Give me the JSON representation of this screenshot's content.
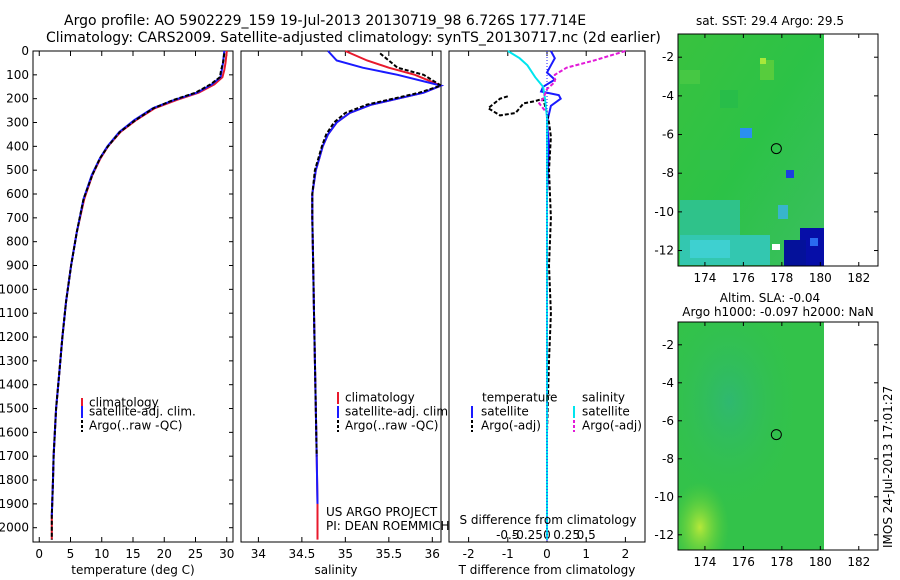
{
  "title_line1": "Argo profile: AO 5902229_159 19-Jul-2013 20130719_98 6.726S 177.714E",
  "title_line2": "Climatology: CARS2009. Satellite-adjusted climatology: synTS_20130717.nc (2d earlier)",
  "colors": {
    "clim": "#e8192c",
    "sat": "#1a1aff",
    "argo": "#000000",
    "sal_sat": "#00e5ee",
    "sal_argo": "#e21ad8"
  },
  "depth_ticks": [
    0,
    100,
    200,
    300,
    400,
    500,
    600,
    700,
    800,
    900,
    1000,
    1100,
    1200,
    1300,
    1400,
    1500,
    1600,
    1700,
    1800,
    1900,
    2000
  ],
  "chart_data": [
    {
      "type": "line",
      "id": "temperature",
      "xlabel": "temperature (deg C)",
      "xlim": [
        -1,
        31
      ],
      "ylim": [
        2060,
        0
      ],
      "xticks": [
        0,
        5,
        10,
        15,
        20,
        25,
        30
      ],
      "legend": [
        "climatology",
        "satellite-adj. clim.",
        "Argo(..raw -QC)"
      ],
      "series": [
        {
          "name": "climatology",
          "color_key": "clim",
          "x": [
            30.0,
            29.8,
            29.6,
            29.3,
            28.0,
            25.5,
            22.0,
            18.5,
            15.5,
            13.0,
            11.0,
            9.8,
            8.5,
            7.2,
            6.0,
            5.1,
            4.3,
            3.7,
            3.2,
            2.7,
            2.3,
            2.2,
            2.0,
            2.0
          ],
          "y": [
            0,
            50,
            80,
            110,
            140,
            175,
            205,
            240,
            290,
            340,
            400,
            450,
            520,
            620,
            760,
            900,
            1050,
            1200,
            1350,
            1500,
            1700,
            1800,
            1950,
            2050
          ]
        },
        {
          "name": "satellite-adj. clim.",
          "color_key": "sat",
          "x": [
            29.6,
            29.4,
            29.2,
            29.0,
            27.6,
            25.2,
            21.6,
            18.2,
            15.2,
            12.8,
            10.9,
            9.7,
            8.4,
            7.1,
            6.0,
            5.1,
            4.3,
            3.7,
            3.2,
            2.7,
            2.3,
            2.2,
            2.0
          ],
          "y": [
            0,
            50,
            80,
            110,
            140,
            175,
            205,
            240,
            290,
            340,
            400,
            450,
            520,
            620,
            760,
            900,
            1050,
            1200,
            1350,
            1500,
            1700,
            1800,
            1950
          ]
        },
        {
          "name": "Argo(..raw -QC)",
          "color_key": "argo",
          "x": [
            29.6,
            29.4,
            29.1,
            28.9,
            27.4,
            25.0,
            21.5,
            18.3,
            15.4,
            12.9,
            11.0,
            9.7,
            8.5,
            7.1,
            6.0,
            5.1,
            4.3,
            3.7,
            3.2,
            2.7,
            2.3,
            2.2,
            2.0,
            2.0
          ],
          "y": [
            10,
            50,
            80,
            110,
            140,
            175,
            205,
            240,
            290,
            340,
            400,
            450,
            520,
            620,
            760,
            900,
            1050,
            1200,
            1350,
            1500,
            1700,
            1800,
            1950,
            2050
          ]
        }
      ]
    },
    {
      "type": "line",
      "id": "salinity",
      "xlabel": "salinity",
      "xlim": [
        33.8,
        36.1
      ],
      "ylim": [
        2060,
        0
      ],
      "xticks": [
        34,
        34.5,
        35,
        35.5,
        36
      ],
      "legend": [
        "climatology",
        "satellite-adj. clim.",
        "Argo(..raw -QC)"
      ],
      "annotation": [
        "US ARGO PROJECT",
        "PI: DEAN ROEMMICH"
      ],
      "series": [
        {
          "name": "climatology",
          "color_key": "clim",
          "x": [
            35.0,
            35.25,
            35.5,
            35.8,
            36.1,
            35.9,
            35.6,
            35.3,
            35.05,
            34.9,
            34.8,
            34.74,
            34.7,
            34.66,
            34.62,
            34.62,
            34.63,
            34.64,
            34.65,
            34.66,
            34.67,
            34.68,
            34.68
          ],
          "y": [
            0,
            40,
            70,
            100,
            145,
            175,
            200,
            225,
            260,
            300,
            350,
            400,
            450,
            500,
            600,
            700,
            900,
            1100,
            1300,
            1500,
            1700,
            1900,
            2050
          ]
        },
        {
          "name": "satellite-adj. clim.",
          "color_key": "sat",
          "x": [
            34.8,
            34.9,
            35.2,
            35.6,
            36.1,
            35.9,
            35.6,
            35.3,
            35.05,
            34.9,
            34.8,
            34.74,
            34.7,
            34.66,
            34.62,
            34.62,
            34.63,
            34.64,
            34.65,
            34.66,
            34.67,
            34.68
          ],
          "y": [
            0,
            40,
            70,
            100,
            145,
            175,
            200,
            225,
            260,
            300,
            350,
            400,
            450,
            500,
            600,
            700,
            900,
            1100,
            1300,
            1500,
            1700,
            1900
          ]
        },
        {
          "name": "Argo(..raw -QC)",
          "color_key": "argo",
          "x": [
            35.4,
            35.5,
            35.6,
            35.9,
            36.1,
            35.85,
            35.55,
            35.25,
            35.0,
            34.87,
            34.78,
            34.73,
            34.69,
            34.65,
            34.62,
            34.62,
            34.63,
            34.64,
            34.65,
            34.66,
            34.67
          ],
          "y": [
            10,
            40,
            70,
            100,
            145,
            175,
            200,
            225,
            260,
            300,
            350,
            400,
            450,
            500,
            600,
            700,
            900,
            1100,
            1300,
            1500,
            1700
          ]
        }
      ]
    },
    {
      "type": "line",
      "id": "differences",
      "xlabel": "T difference from climatology",
      "xlabel_top": "S difference from climatology",
      "xlim": [
        -2.5,
        2.5
      ],
      "ylim": [
        2060,
        0
      ],
      "xticks": [
        -2,
        -1,
        0,
        1,
        2
      ],
      "xticks_top": [
        -0.5,
        -0.25,
        0,
        0.25,
        0.5
      ],
      "legend_headers": [
        "temperature",
        "salinity"
      ],
      "legend": [
        "satellite",
        "Argo(-adj)",
        "satellite",
        "Argo(-adj)"
      ],
      "series": [
        {
          "name": "T satellite",
          "color_key": "sat",
          "x": [
            0.1,
            0.2,
            0.1,
            0.0,
            0.2,
            -0.1,
            -0.15,
            0.3,
            0.35,
            0.1,
            0.0,
            0.05,
            0.0,
            0.0,
            0.0,
            0.0,
            0.0
          ],
          "y": [
            0,
            30,
            60,
            90,
            120,
            150,
            170,
            185,
            200,
            230,
            300,
            400,
            600,
            900,
            1200,
            1500,
            2050
          ]
        },
        {
          "name": "T Argo(-adj)",
          "color_key": "argo",
          "x": [
            -1.0,
            -1.2,
            -1.5,
            -1.2,
            -0.8,
            -0.6,
            -0.3,
            -0.1,
            0.0,
            0.05,
            0.1,
            0.05,
            0.1,
            0.05,
            0.1,
            0.05,
            0.0,
            0.0
          ],
          "y": [
            190,
            200,
            240,
            270,
            260,
            220,
            210,
            200,
            260,
            300,
            360,
            500,
            700,
            900,
            1100,
            1300,
            1600,
            1950
          ]
        },
        {
          "name": "S satellite",
          "color_key": "sal_sat",
          "x": [
            -1.0,
            -0.7,
            -0.5,
            -0.3,
            -0.1,
            -0.05,
            0.0,
            0.0,
            0.0,
            0.0,
            0.0,
            0.0,
            0.0
          ],
          "y": [
            0,
            30,
            60,
            110,
            150,
            200,
            280,
            400,
            600,
            900,
            1200,
            1600,
            2050
          ]
        },
        {
          "name": "S Argo(-adj)",
          "color_key": "sal_argo",
          "x": [
            2.0,
            1.2,
            0.5,
            0.2,
            0.2,
            0.0,
            -0.1,
            -0.2,
            -0.05
          ],
          "y": [
            0,
            40,
            70,
            100,
            130,
            160,
            200,
            220,
            250
          ]
        }
      ]
    }
  ],
  "map_top": {
    "title": "sat. SST: 29.4  Argo: 29.5",
    "yticks": [
      -2,
      -4,
      -6,
      -8,
      -10,
      -12
    ],
    "xticks": [
      174,
      176,
      178,
      180,
      182
    ],
    "xlim": [
      172.6,
      183.0
    ],
    "ylim": [
      -12.8,
      -0.8
    ],
    "profile": {
      "lon": 177.714,
      "lat": -6.726
    }
  },
  "map_bottom": {
    "title_line1": "Altim. SLA: -0.04",
    "title_line2": "Argo h1000: -0.097 h2000: NaN",
    "yticks": [
      -2,
      -4,
      -6,
      -8,
      -10,
      -12
    ],
    "xticks": [
      174,
      176,
      178,
      180,
      182
    ],
    "xlim": [
      172.6,
      183.0
    ],
    "ylim": [
      -12.8,
      -0.8
    ],
    "profile": {
      "lon": 177.714,
      "lat": -6.726
    }
  },
  "footer": "IMOS 24-Jul-2013 17:01:27"
}
